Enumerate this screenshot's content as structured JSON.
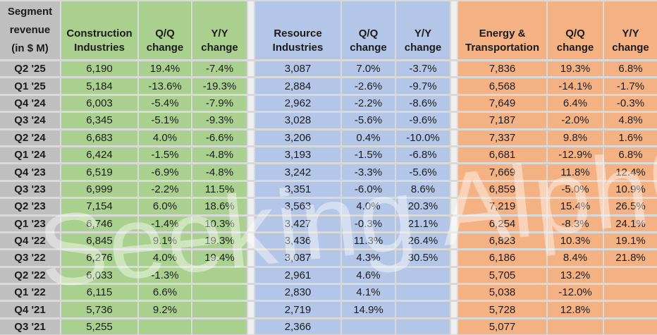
{
  "watermark": {
    "text": "Seeking Alph",
    "alpha": "α"
  },
  "header": {
    "title_line1": "Segment",
    "title_line2": "revenue",
    "title_line3": "(in $ M)",
    "qq_label": "Q/Q change",
    "yy_label": "Y/Y change"
  },
  "colors": {
    "label_bg": "#BFBFBF",
    "construction_bg": "#A9D08E",
    "resource_bg": "#B4C6E7",
    "energy_bg": "#F4B183",
    "grid_line": "#D9D9D9",
    "spacer_bg": "#EFEFEF"
  },
  "chart_data": {
    "type": "table",
    "title": "Segment revenue (in $ M)",
    "quarters": [
      "Q2 '25",
      "Q1 '25",
      "Q4 '24",
      "Q3 '24",
      "Q2 '24",
      "Q1 '24",
      "Q4 '23",
      "Q3 '23",
      "Q2 '23",
      "Q1 '23",
      "Q4 '22",
      "Q3 '22",
      "Q2 '22",
      "Q1 '22",
      "Q4 '21",
      "Q3 '21"
    ],
    "series": [
      {
        "name": "Construction Industries",
        "color": "#A9D08E",
        "revenue": [
          6190,
          5184,
          6003,
          6345,
          6683,
          6424,
          6519,
          6999,
          7154,
          6746,
          6845,
          6276,
          6033,
          6115,
          5736,
          5255
        ],
        "qq_pct": [
          19.4,
          -13.6,
          -5.4,
          -5.1,
          4.0,
          -1.5,
          -6.9,
          -2.2,
          6.0,
          -1.4,
          9.1,
          4.0,
          -1.3,
          6.6,
          9.2,
          null
        ],
        "yy_pct": [
          -7.4,
          -19.3,
          -7.9,
          -9.3,
          -6.6,
          -4.8,
          -4.8,
          11.5,
          18.6,
          10.3,
          19.3,
          19.4,
          null,
          null,
          null,
          null
        ]
      },
      {
        "name": "Resource Industries",
        "color": "#B4C6E7",
        "revenue": [
          3087,
          2884,
          2962,
          3028,
          3206,
          3193,
          3242,
          3351,
          3563,
          3427,
          3436,
          3087,
          2961,
          2830,
          2719,
          2366
        ],
        "qq_pct": [
          7.0,
          -2.6,
          -2.2,
          -5.6,
          0.4,
          -1.5,
          -3.3,
          -6.0,
          4.0,
          -0.3,
          11.3,
          4.3,
          4.6,
          4.1,
          14.9,
          null
        ],
        "yy_pct": [
          -3.7,
          -9.7,
          -8.6,
          -9.6,
          -10.0,
          -6.8,
          -5.6,
          8.6,
          20.3,
          21.1,
          26.4,
          30.5,
          null,
          null,
          null,
          null
        ]
      },
      {
        "name": "Energy & Transportation",
        "color": "#F4B183",
        "revenue": [
          7836,
          6568,
          7649,
          7187,
          7337,
          6681,
          7669,
          6859,
          7219,
          6254,
          6823,
          6186,
          5705,
          5038,
          5728,
          5077
        ],
        "qq_pct": [
          19.3,
          -14.1,
          6.4,
          -2.0,
          9.8,
          -12.9,
          11.8,
          -5.0,
          15.4,
          -8.3,
          10.3,
          8.4,
          13.2,
          -12.0,
          12.8,
          null
        ],
        "yy_pct": [
          6.8,
          -1.7,
          -0.3,
          4.8,
          1.6,
          6.8,
          12.4,
          10.9,
          26.5,
          24.1,
          19.1,
          21.8,
          null,
          null,
          null,
          null
        ]
      }
    ]
  }
}
